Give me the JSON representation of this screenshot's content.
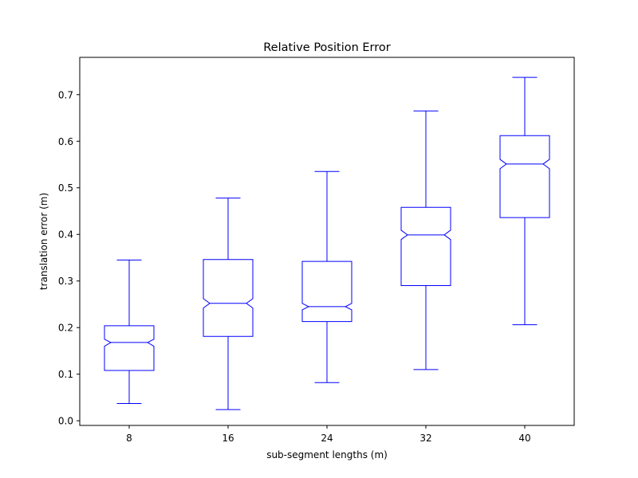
{
  "chart_data": {
    "type": "box",
    "title": "Relative Position Error",
    "xlabel": "sub-segment lengths (m)",
    "ylabel": "translation error (m)",
    "categories": [
      "8",
      "16",
      "24",
      "32",
      "40"
    ],
    "ylim": [
      -0.01,
      0.78
    ],
    "yticks": [
      0.0,
      0.1,
      0.2,
      0.3,
      0.4,
      0.5,
      0.6,
      0.7
    ],
    "ytick_labels": [
      "0.0",
      "0.1",
      "0.2",
      "0.3",
      "0.4",
      "0.5",
      "0.6",
      "0.7"
    ],
    "notched": true,
    "grid": false,
    "color": "#0000ff",
    "boxes": [
      {
        "category": "8",
        "whislo": 0.037,
        "q1": 0.108,
        "med": 0.168,
        "q3": 0.204,
        "whishi": 0.345,
        "notch_lo": 0.16,
        "notch_hi": 0.175
      },
      {
        "category": "16",
        "whislo": 0.024,
        "q1": 0.181,
        "med": 0.252,
        "q3": 0.346,
        "whishi": 0.478,
        "notch_lo": 0.242,
        "notch_hi": 0.262
      },
      {
        "category": "24",
        "whislo": 0.082,
        "q1": 0.213,
        "med": 0.245,
        "q3": 0.342,
        "whishi": 0.535,
        "notch_lo": 0.238,
        "notch_hi": 0.252
      },
      {
        "category": "32",
        "whislo": 0.11,
        "q1": 0.29,
        "med": 0.399,
        "q3": 0.458,
        "whishi": 0.665,
        "notch_lo": 0.389,
        "notch_hi": 0.409
      },
      {
        "category": "40",
        "whislo": 0.206,
        "q1": 0.436,
        "med": 0.551,
        "q3": 0.612,
        "whishi": 0.737,
        "notch_lo": 0.541,
        "notch_hi": 0.561
      }
    ]
  }
}
